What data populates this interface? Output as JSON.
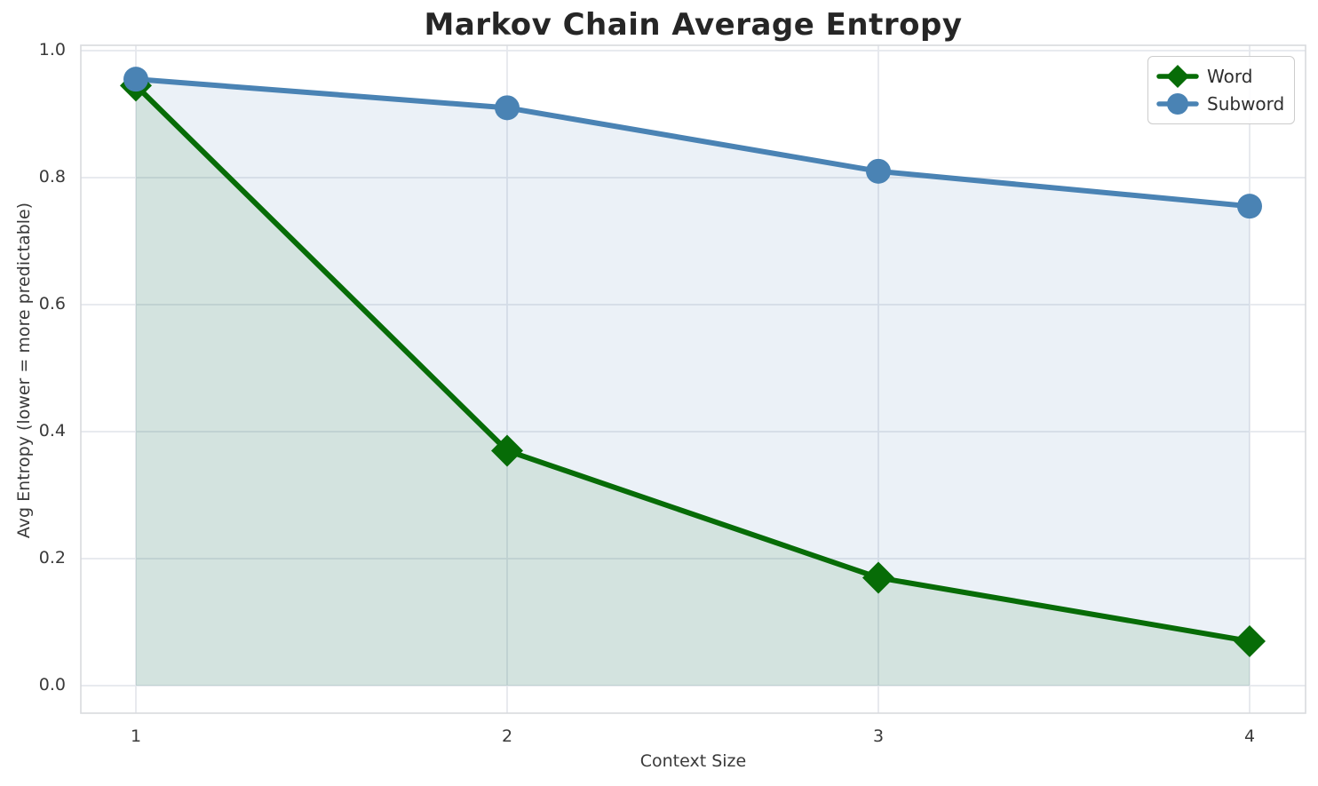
{
  "figure": {
    "background_color": "#ffffff"
  },
  "chart_data": {
    "type": "line",
    "title": "Markov Chain Average Entropy",
    "xlabel": "Context Size",
    "ylabel": "Avg Entropy (lower = more predictable)",
    "x": [
      1,
      2,
      3,
      4
    ],
    "series": [
      {
        "name": "Word",
        "values": [
          0.945,
          0.37,
          0.17,
          0.07
        ],
        "color": "#076c07",
        "fill": "rgba(0,108,0,0.10)",
        "marker": "diamond"
      },
      {
        "name": "Subword",
        "values": [
          0.955,
          0.91,
          0.81,
          0.755
        ],
        "color": "#4a83b4",
        "fill": "rgba(70,130,180,0.11)",
        "marker": "circle"
      }
    ],
    "xticks": [
      "1",
      "2",
      "3",
      "4"
    ],
    "yticks": [
      "0.0",
      "0.2",
      "0.4",
      "0.6",
      "0.8",
      "1.0"
    ],
    "ytick_values": [
      0.0,
      0.2,
      0.4,
      0.6,
      0.8,
      1.0
    ],
    "ylim": [
      0.0,
      1.0
    ],
    "grid": true,
    "legend_position": "upper right"
  }
}
